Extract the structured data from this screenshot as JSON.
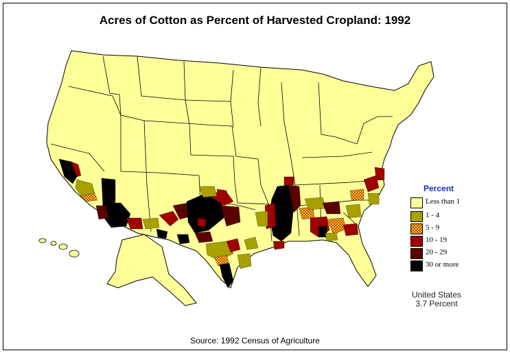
{
  "title": "Acres of Cotton as Percent of Harvested Cropland:  1992",
  "legend": {
    "title": "Percent",
    "items": [
      {
        "label": "Less than 1",
        "color": "#ffff99"
      },
      {
        "label": "1  -  4",
        "color": "#a8a000"
      },
      {
        "label": "5  -  9",
        "color": "#e8a020",
        "pattern": "checker"
      },
      {
        "label": "10  -  19",
        "color": "#a00000"
      },
      {
        "label": "20  -  29",
        "color": "#5a0000"
      },
      {
        "label": "30 or more",
        "color": "#000000"
      }
    ]
  },
  "summary": {
    "line1": "United States",
    "line2": "3.7 Percent"
  },
  "source": "Source:  1992 Census of Agriculture"
}
